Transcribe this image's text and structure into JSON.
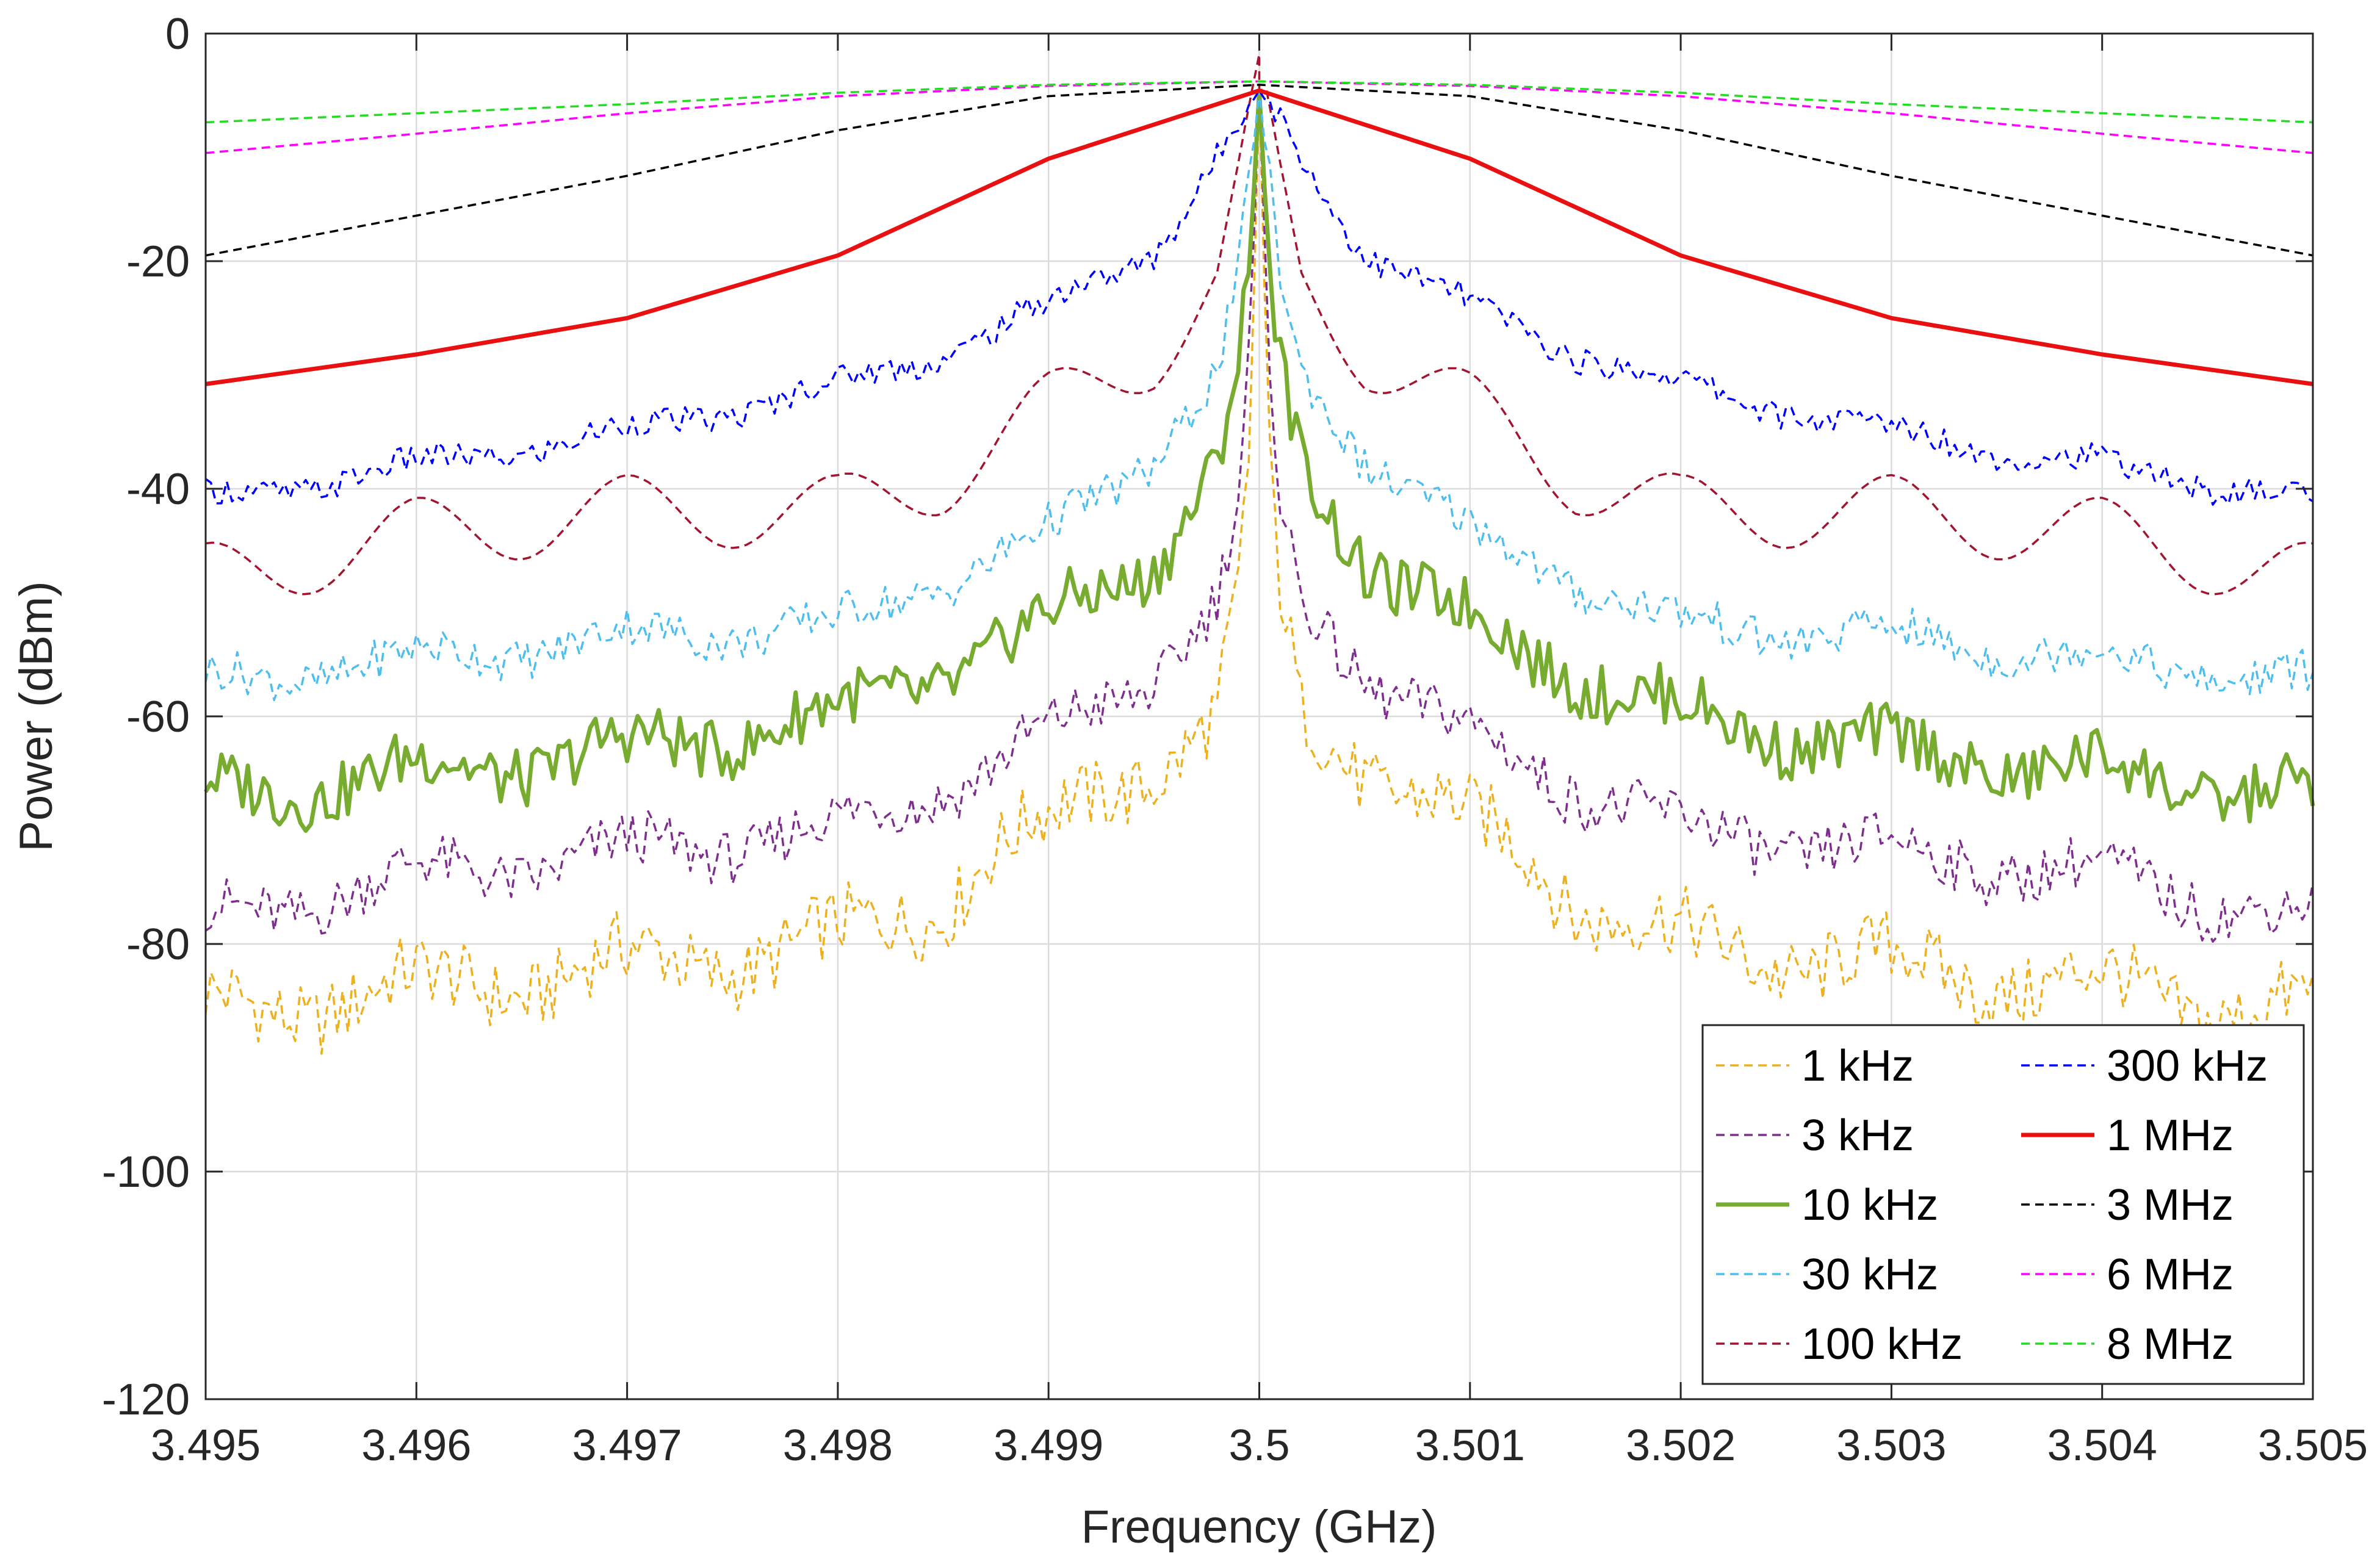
{
  "chart_data": {
    "type": "line",
    "title": "",
    "xlabel": "Frequency (GHz)",
    "ylabel": "Power (dBm)",
    "xlim": [
      3.495,
      3.505
    ],
    "ylim": [
      -120,
      0
    ],
    "x_ticks": [
      3.495,
      3.496,
      3.497,
      3.498,
      3.499,
      3.5,
      3.501,
      3.502,
      3.503,
      3.504,
      3.505
    ],
    "x_tick_labels": [
      "3.495",
      "3.496",
      "3.497",
      "3.498",
      "3.499",
      "3.5",
      "3.501",
      "3.502",
      "3.503",
      "3.504",
      "3.505"
    ],
    "y_ticks": [
      0,
      -20,
      -40,
      -60,
      -80,
      -100,
      -120
    ],
    "y_tick_labels": [
      "0",
      "-20",
      "-40",
      "-60",
      "-80",
      "-100",
      "-120"
    ],
    "grid": true,
    "legend_position": "bottom-right",
    "legend_columns": 2,
    "center_frequency": 3.5,
    "series": [
      {
        "name": "1 kHz",
        "color": "#EDB120",
        "dash": "dashed",
        "width": "thin",
        "peak": -5,
        "anchors": [
          [
            5e-05,
            -40
          ],
          [
            0.0001,
            -50
          ],
          [
            0.0002,
            -60
          ],
          [
            0.0005,
            -64
          ],
          [
            0.001,
            -70
          ],
          [
            0.0013,
            -72
          ],
          [
            0.0015,
            -76
          ],
          [
            0.002,
            -80
          ],
          [
            0.003,
            -82
          ],
          [
            0.004,
            -84
          ],
          [
            0.005,
            -86
          ]
        ],
        "noise": 3.2
      },
      {
        "name": "3 kHz",
        "color": "#7E2F8E",
        "dash": "dashed",
        "width": "thin",
        "peak": -5,
        "anchors": [
          [
            5e-05,
            -30
          ],
          [
            0.0001,
            -42
          ],
          [
            0.0002,
            -50
          ],
          [
            0.0005,
            -56
          ],
          [
            0.001,
            -62
          ],
          [
            0.0015,
            -66
          ],
          [
            0.002,
            -70
          ],
          [
            0.003,
            -72
          ],
          [
            0.004,
            -74
          ],
          [
            0.005,
            -78
          ]
        ],
        "noise": 2.4
      },
      {
        "name": "10 kHz",
        "color": "#77AC30",
        "dash": "solid",
        "width": "thick",
        "peak": -5,
        "anchors": [
          [
            5e-05,
            -22
          ],
          [
            0.0001,
            -30
          ],
          [
            0.0002,
            -38
          ],
          [
            0.0005,
            -46
          ],
          [
            0.001,
            -52
          ],
          [
            0.0015,
            -56
          ],
          [
            0.002,
            -60
          ],
          [
            0.003,
            -63
          ],
          [
            0.004,
            -65
          ],
          [
            0.005,
            -67
          ]
        ],
        "noise": 2.6
      },
      {
        "name": "30 kHz",
        "color": "#4DBEEE",
        "dash": "dashed",
        "width": "thin",
        "peak": -5,
        "anchors": [
          [
            5e-05,
            -14
          ],
          [
            0.0001,
            -22
          ],
          [
            0.0002,
            -30
          ],
          [
            0.0005,
            -37
          ],
          [
            0.001,
            -44
          ],
          [
            0.0015,
            -48
          ],
          [
            0.002,
            -52
          ],
          [
            0.003,
            -53
          ],
          [
            0.004,
            -55
          ],
          [
            0.005,
            -57
          ]
        ],
        "noise": 1.8
      },
      {
        "name": "100 kHz",
        "color": "#A2142F",
        "dash": "dashed",
        "width": "thin",
        "peak": -5,
        "anchors": [
          [
            0.0001,
            -14
          ],
          [
            0.0002,
            -22
          ],
          [
            0.0005,
            -28
          ],
          [
            0.001,
            -33
          ],
          [
            0.0015,
            -39
          ],
          [
            0.002,
            -42
          ],
          [
            0.003,
            -42
          ],
          [
            0.004,
            -44
          ],
          [
            0.005,
            -48
          ]
        ],
        "noise": 0.0
      },
      {
        "name": "300 kHz",
        "color": "#0000FF",
        "dash": "dashed",
        "width": "thin",
        "peak": -5,
        "anchors": [
          [
            0.0001,
            -8
          ],
          [
            0.0003,
            -14
          ],
          [
            0.0005,
            -19
          ],
          [
            0.001,
            -24
          ],
          [
            0.0015,
            -28
          ],
          [
            0.002,
            -31
          ],
          [
            0.003,
            -35
          ],
          [
            0.004,
            -38
          ],
          [
            0.005,
            -41
          ]
        ],
        "noise": 1.2
      },
      {
        "name": "1 MHz",
        "color": "#E81010",
        "dash": "solid",
        "width": "thick",
        "peak": -5,
        "anchors": [
          [
            0.001,
            -11
          ],
          [
            0.002,
            -19.5
          ],
          [
            0.003,
            -25
          ],
          [
            0.004,
            -28.2
          ],
          [
            0.005,
            -30.8
          ]
        ],
        "noise": 0.0
      },
      {
        "name": "3 MHz",
        "color": "#000000",
        "dash": "dashed",
        "width": "thin",
        "peak": -4.5,
        "anchors": [
          [
            0.001,
            -5.5
          ],
          [
            0.002,
            -8.5
          ],
          [
            0.003,
            -12.5
          ],
          [
            0.004,
            -16
          ],
          [
            0.005,
            -19.5
          ]
        ],
        "noise": 0.0
      },
      {
        "name": "6 MHz",
        "color": "#FF00FF",
        "dash": "dashed",
        "width": "thin",
        "peak": -4.2,
        "anchors": [
          [
            0.001,
            -4.6
          ],
          [
            0.002,
            -5.5
          ],
          [
            0.003,
            -7
          ],
          [
            0.004,
            -8.8
          ],
          [
            0.005,
            -10.5
          ]
        ],
        "noise": 0.0
      },
      {
        "name": "8 MHz",
        "color": "#22DD22",
        "dash": "dashed",
        "width": "thin",
        "peak": -4.2,
        "anchors": [
          [
            0.001,
            -4.5
          ],
          [
            0.002,
            -5.2
          ],
          [
            0.003,
            -6.2
          ],
          [
            0.004,
            -7
          ],
          [
            0.005,
            -7.8
          ]
        ],
        "noise": 0.0
      }
    ]
  }
}
